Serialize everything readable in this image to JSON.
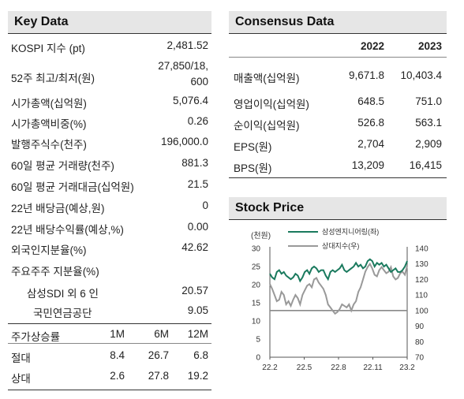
{
  "key_data": {
    "title": "Key Data",
    "rows": [
      {
        "label": "KOSPI 지수 (pt)",
        "value": "2,481.52"
      },
      {
        "label": "52주 최고/최저(원)",
        "value_line1": "27,850/18,",
        "value_line2": "600"
      },
      {
        "label": "시가총액(십억원)",
        "value": "5,076.4"
      },
      {
        "label": "시가총액비중(%)",
        "value": "0.26"
      },
      {
        "label": "발행주식수(천주)",
        "value": "196,000.0"
      },
      {
        "label": "60일 평균 거래량(천주)",
        "value": "881.3"
      },
      {
        "label": "60일 평균 거래대금(십억원)",
        "value": "21.5"
      },
      {
        "label": "22년 배당금(예상,원)",
        "value": "0"
      },
      {
        "label": "22년 배당수익률(예상,%)",
        "value": "0.00"
      },
      {
        "label": "외국인지분율(%)",
        "value": "42.62"
      },
      {
        "label": "주요주주 지분율(%)",
        "value": ""
      },
      {
        "label": "삼성SDI 외 6 인",
        "value": "20.57"
      },
      {
        "label": "국민연금공단",
        "value": "9.05"
      }
    ],
    "returns": {
      "header": [
        "주가상승률",
        "1M",
        "6M",
        "12M"
      ],
      "rows": [
        [
          "절대",
          "8.4",
          "26.7",
          "6.8"
        ],
        [
          "상대",
          "2.6",
          "27.8",
          "19.2"
        ]
      ]
    }
  },
  "consensus": {
    "title": "Consensus Data",
    "years": [
      "2022",
      "2023"
    ],
    "rows": [
      {
        "label": "매출액(십억원)",
        "v2022": "9,671.8",
        "v2023": "10,403.4"
      },
      {
        "label": "영업이익(십억원)",
        "v2022": "648.5",
        "v2023": "751.0"
      },
      {
        "label": "순이익(십억원)",
        "v2022": "526.8",
        "v2023": "563.1"
      },
      {
        "label": "EPS(원)",
        "v2022": "2,704",
        "v2023": "2,909"
      },
      {
        "label": "BPS(원)",
        "v2022": "13,209",
        "v2023": "16,415"
      }
    ]
  },
  "stock_price": {
    "title": "Stock Price",
    "chart_data": {
      "type": "line",
      "left_axis_label": "(천원)",
      "left_ticks": [
        "30",
        "25",
        "20",
        "15",
        "10",
        "5",
        "0"
      ],
      "right_ticks": [
        "140",
        "130",
        "120",
        "110",
        "100",
        "90",
        "80",
        "70"
      ],
      "x_ticks": [
        "22.2",
        "22.5",
        "22.8",
        "22.11",
        "23.2"
      ],
      "left_ylim": [
        0,
        30
      ],
      "right_ylim": [
        70,
        140
      ],
      "reference_line_right": 100,
      "series": [
        {
          "name": "삼성엔지니어링(좌)",
          "axis": "left",
          "color": "#1a7a5e",
          "values": [
            23.0,
            22.0,
            21.5,
            23.5,
            24.0,
            23.0,
            23.5,
            22.5,
            22.0,
            21.5,
            22.0,
            23.0,
            22.5,
            21.0,
            22.0,
            23.5,
            24.0,
            23.0,
            24.5,
            25.0,
            24.5,
            23.5,
            24.0,
            24.0,
            22.5,
            21.5,
            23.5,
            24.0,
            23.5,
            24.0,
            24.5,
            25.5,
            24.0,
            23.5,
            24.0,
            24.5,
            25.0,
            26.0,
            25.0,
            25.5,
            24.5,
            25.0,
            26.5,
            27.0,
            26.5,
            25.0,
            26.0,
            25.5,
            26.0,
            25.0,
            25.5,
            24.5,
            23.5,
            24.0,
            24.5,
            23.5,
            23.5,
            24.0,
            25.0,
            26.5
          ]
        },
        {
          "name": "상대지수(우)",
          "axis": "right",
          "color": "#999999",
          "values": [
            117,
            114,
            110,
            106,
            107,
            112,
            110,
            104,
            106,
            103,
            107,
            110,
            108,
            104,
            110,
            113,
            116,
            117,
            115,
            120,
            121,
            118,
            116,
            114,
            110,
            104,
            102,
            100,
            98,
            99,
            101,
            104,
            103,
            102,
            104,
            100,
            104,
            106,
            112,
            115,
            120,
            125,
            128,
            130,
            127,
            123,
            122,
            126,
            128,
            126,
            124,
            125,
            128,
            122,
            120,
            121,
            124,
            125,
            123,
            129
          ]
        }
      ]
    }
  }
}
